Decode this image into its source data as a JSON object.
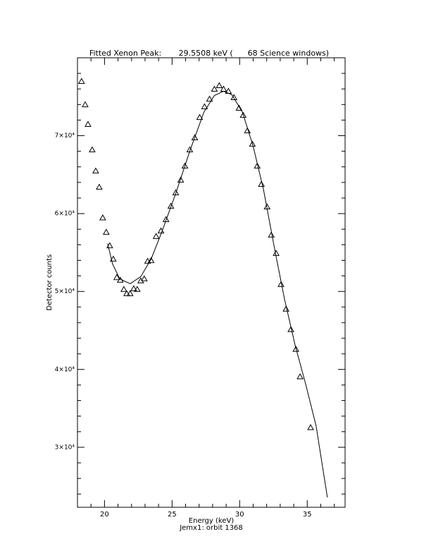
{
  "chart_data": {
    "type": "scatter",
    "title": "Fitted Xenon Peak:       29.5508 keV (      68 Science windows)",
    "xlabel": "Energy (keV)",
    "subtitle": "Jemx1: orbit 1368",
    "ylabel": "Detector counts",
    "xlim": [
      18,
      37.8
    ],
    "ylim": [
      22300,
      80000
    ],
    "xticks": [
      20,
      25,
      30,
      35
    ],
    "xminorticks": [
      18,
      19,
      21,
      22,
      23,
      24,
      26,
      27,
      28,
      29,
      31,
      32,
      33,
      34,
      36,
      37
    ],
    "yticks": [
      {
        "value": 30000,
        "label": "3×10⁴"
      },
      {
        "value": 40000,
        "label": "4×10⁴"
      },
      {
        "value": 50000,
        "label": "5×10⁴"
      },
      {
        "value": 60000,
        "label": "6×10⁴"
      },
      {
        "value": 70000,
        "label": "7×10⁴"
      }
    ],
    "yminorticks": [
      24000,
      26000,
      28000,
      32000,
      34000,
      36000,
      38000,
      42000,
      44000,
      46000,
      48000,
      52000,
      54000,
      56000,
      58000,
      62000,
      64000,
      66000,
      68000,
      72000,
      74000,
      76000,
      78000
    ],
    "series": [
      {
        "type": "scatter",
        "color": "#000000",
        "x": [
          18.3,
          18.57,
          18.78,
          19.09,
          19.35,
          19.61,
          19.87,
          20.13,
          20.39,
          20.65,
          20.91,
          21.17,
          21.43,
          21.64,
          21.9,
          22.16,
          22.42,
          22.68,
          22.94,
          23.19,
          23.45,
          23.82,
          24.18,
          24.55,
          24.91,
          25.27,
          25.64,
          25.95,
          26.31,
          26.68,
          27.04,
          27.4,
          27.77,
          28.13,
          28.49,
          28.81,
          29.17,
          29.58,
          29.95,
          30.26,
          30.57,
          30.94,
          31.3,
          31.61,
          32.03,
          32.34,
          32.7,
          33.06,
          33.43,
          33.79,
          34.16,
          34.47,
          35.25
        ],
        "values": [
          76970,
          73980,
          71450,
          68190,
          65475,
          63390,
          59460,
          57600,
          55880,
          54160,
          51800,
          51450,
          50270,
          49730,
          49730,
          50360,
          50270,
          51360,
          51630,
          53890,
          53980,
          57060,
          57780,
          59230,
          60950,
          62670,
          64300,
          66110,
          68190,
          69730,
          72350,
          73710,
          74700,
          75970,
          76430,
          75970,
          75700,
          74890,
          73530,
          72620,
          70630,
          68910,
          66110,
          63760,
          60860,
          57240,
          54890,
          50900,
          47740,
          45110,
          42580,
          39050,
          32530
        ]
      },
      {
        "type": "line",
        "color": "#000000",
        "x": [
          20.23,
          20.6,
          21.12,
          21.9,
          22.68,
          23.45,
          24.23,
          25.27,
          26.31,
          27.35,
          28.13,
          28.81,
          29.43,
          30.21,
          31,
          31.77,
          32.55,
          33.32,
          34.1,
          34.88,
          35.66,
          36.49
        ],
        "values": [
          56150,
          53530,
          51630,
          51000,
          51900,
          54160,
          57600,
          62580,
          68010,
          72990,
          75160,
          75700,
          75250,
          72990,
          68640,
          63030,
          55790,
          49000,
          43120,
          38140,
          32710,
          23570
        ]
      }
    ]
  }
}
